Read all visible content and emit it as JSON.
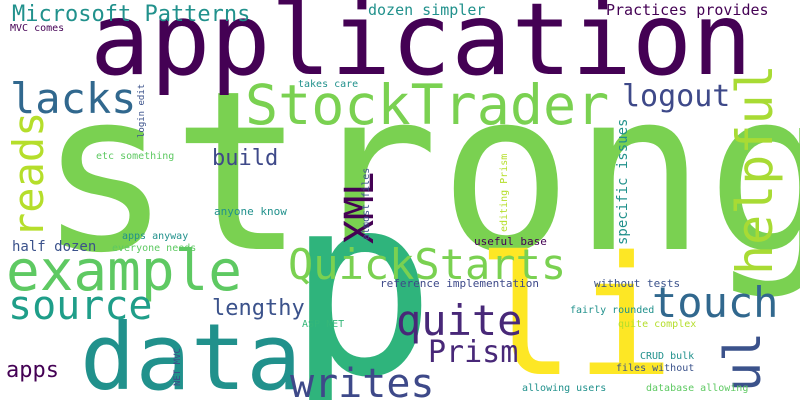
{
  "palette": {
    "dark_purple": "#440154",
    "indigo": "#3b528b",
    "teal": "#21918c",
    "green": "#35b779",
    "lime": "#7ad151",
    "yellow": "#fde725"
  },
  "words": [
    {
      "text": "strong",
      "color": "#7ad151"
    },
    {
      "text": "application",
      "color": "#440154"
    },
    {
      "text": "p",
      "color": "#2fb47c"
    },
    {
      "text": "li",
      "color": "#fde725"
    },
    {
      "text": "data",
      "color": "#21918c"
    },
    {
      "text": "StockTrader",
      "color": "#7ad151"
    },
    {
      "text": "example",
      "color": "#5ec962"
    },
    {
      "text": "QuickStarts",
      "color": "#7ad151"
    },
    {
      "text": "helpful",
      "color": "#a8db34"
    },
    {
      "text": "ul",
      "color": "#3b528b"
    },
    {
      "text": "touch",
      "color": "#31688e"
    },
    {
      "text": "quite",
      "color": "#482878"
    },
    {
      "text": "source",
      "color": "#1f9e89"
    },
    {
      "text": "writes",
      "color": "#3e4989"
    },
    {
      "text": "lacks",
      "color": "#31688e"
    },
    {
      "text": "reads",
      "color": "#b5de2b"
    },
    {
      "text": "XML",
      "color": "#440154"
    },
    {
      "text": "logout",
      "color": "#3e4989"
    },
    {
      "text": "Microsoft Patterns",
      "color": "#21918c"
    },
    {
      "text": "Prism",
      "color": "#482878"
    },
    {
      "text": "lengthy",
      "color": "#3b528b"
    },
    {
      "text": "build",
      "color": "#3e4989"
    },
    {
      "text": "apps",
      "color": "#440154"
    },
    {
      "text": "Practices provides",
      "color": "#440154"
    },
    {
      "text": "dozen simpler",
      "color": "#21918c"
    },
    {
      "text": "half dozen",
      "color": "#3b528b"
    },
    {
      "text": "specific issues",
      "color": "#21918c"
    },
    {
      "text": "reference implementation",
      "color": "#3e4989"
    },
    {
      "text": "without tests",
      "color": "#3b528b"
    },
    {
      "text": "anyone know",
      "color": "#21918c"
    },
    {
      "text": "useful base",
      "color": "#440154"
    },
    {
      "text": "MVC comes",
      "color": "#440154"
    },
    {
      "text": "takes care",
      "color": "#21918c"
    },
    {
      "text": "login edit",
      "color": "#3b528b"
    },
    {
      "text": "etc something",
      "color": "#5ec962"
    },
    {
      "text": "almost files",
      "color": "#3b528b"
    },
    {
      "text": "editing Prism",
      "color": "#b5de2b"
    },
    {
      "text": "apps anyway",
      "color": "#21918c"
    },
    {
      "text": "everyone needs",
      "color": "#5ec962"
    },
    {
      "text": "ASP NET",
      "color": "#35b779"
    },
    {
      "text": "NET MVC",
      "color": "#3e4989"
    },
    {
      "text": "fairly rounded",
      "color": "#21918c"
    },
    {
      "text": "quite complex",
      "color": "#b5de2b"
    },
    {
      "text": "CRUD bulk",
      "color": "#21918c"
    },
    {
      "text": "files without",
      "color": "#3b528b"
    },
    {
      "text": "allowing users",
      "color": "#21918c"
    },
    {
      "text": "database allowing",
      "color": "#5ec962"
    }
  ]
}
